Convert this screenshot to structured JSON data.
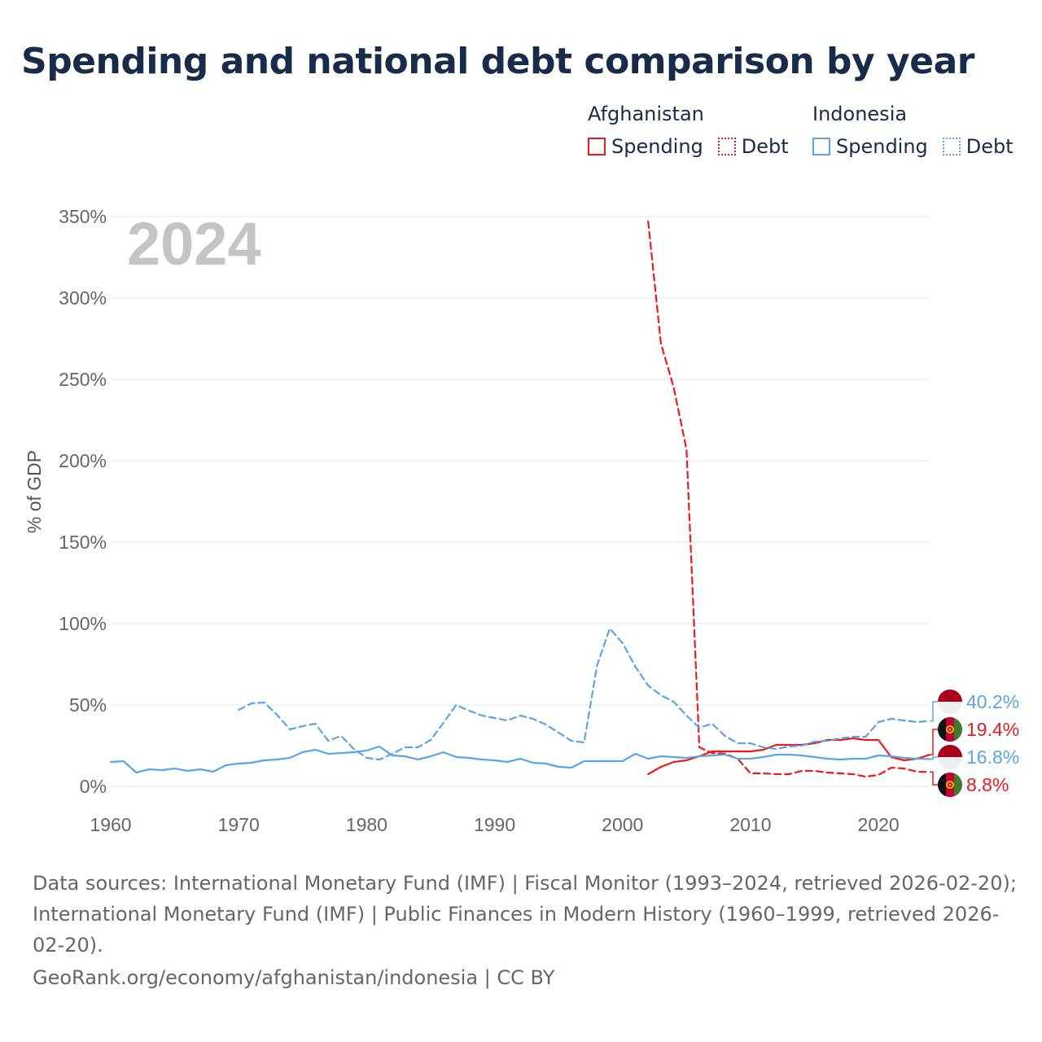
{
  "title": "Spending and national debt comparison by year",
  "legend": {
    "afghanistan": {
      "name": "Afghanistan",
      "spending": "Spending",
      "debt": "Debt",
      "color": "#e81c1c"
    },
    "indonesia": {
      "name": "Indonesia",
      "spending": "Spending",
      "debt": "Debt",
      "color": "#5ba4e5"
    }
  },
  "footer": {
    "sources": "Data sources: International Monetary Fund (IMF) | Fiscal Monitor (1993–2024, retrieved 2026-02-20); International Monetary Fund (IMF) | Public Finances in Modern History (1960–1999, retrieved 2026-02-20).",
    "site": "GeoRank.org/economy/afghanistan/indonesia | CC BY"
  },
  "chart_data": {
    "type": "line",
    "year_label": "2024",
    "ylabel": "% of GDP",
    "xlim": [
      1960,
      2024
    ],
    "ylim": [
      0,
      350
    ],
    "xticks": [
      1960,
      1970,
      1980,
      1990,
      2000,
      2010,
      2020
    ],
    "yticks": [
      0,
      50,
      100,
      150,
      200,
      250,
      300,
      350
    ],
    "ytick_labels": [
      "0%",
      "50%",
      "100%",
      "150%",
      "200%",
      "250%",
      "300%",
      "350%"
    ],
    "series": [
      {
        "name": "Afghanistan Spending",
        "country": "Afghanistan",
        "metric": "Spending",
        "color": "#e81c1c",
        "dash": "solid",
        "x": [
          2002,
          2003,
          2004,
          2005,
          2006,
          2007,
          2008,
          2009,
          2010,
          2011,
          2012,
          2013,
          2014,
          2015,
          2016,
          2017,
          2018,
          2019,
          2020,
          2021,
          2022,
          2023,
          2024
        ],
        "y": [
          7.5,
          12,
          15,
          16,
          18.5,
          21.5,
          21.5,
          21.5,
          21.5,
          22.5,
          25.5,
          25.5,
          25.5,
          26.5,
          28.5,
          28.5,
          29.5,
          28.5,
          28.5,
          18,
          16,
          17,
          19.4
        ]
      },
      {
        "name": "Afghanistan Debt",
        "country": "Afghanistan",
        "metric": "Debt",
        "color": "#e81c1c",
        "dash": "dashed",
        "x": [
          2002,
          2003,
          2004,
          2005,
          2006,
          2007,
          2008,
          2009,
          2010,
          2011,
          2012,
          2013,
          2014,
          2015,
          2016,
          2017,
          2018,
          2019,
          2020,
          2021,
          2022,
          2023,
          2024
        ],
        "y": [
          347,
          272,
          245,
          207,
          24,
          20.5,
          20,
          17,
          8,
          8,
          7.5,
          7.5,
          9.5,
          9.5,
          8.5,
          8,
          7.5,
          6,
          7,
          11.5,
          11,
          9,
          8.8
        ]
      },
      {
        "name": "Indonesia Spending",
        "country": "Indonesia",
        "metric": "Spending",
        "color": "#5ba4e5",
        "dash": "solid",
        "x": [
          1960,
          1961,
          1962,
          1963,
          1964,
          1965,
          1966,
          1967,
          1968,
          1969,
          1970,
          1971,
          1972,
          1973,
          1974,
          1975,
          1976,
          1977,
          1978,
          1979,
          1980,
          1981,
          1982,
          1983,
          1984,
          1985,
          1986,
          1987,
          1988,
          1989,
          1990,
          1991,
          1992,
          1993,
          1994,
          1995,
          1996,
          1997,
          1998,
          1999,
          2000,
          2001,
          2002,
          2003,
          2004,
          2005,
          2006,
          2007,
          2008,
          2009,
          2010,
          2011,
          2012,
          2013,
          2014,
          2015,
          2016,
          2017,
          2018,
          2019,
          2020,
          2021,
          2022,
          2023,
          2024
        ],
        "y": [
          15,
          15.5,
          8.5,
          10.5,
          10,
          11,
          9.5,
          10.5,
          9,
          13,
          14,
          14.5,
          16,
          16.5,
          17.5,
          21,
          22.5,
          20,
          20.5,
          21,
          22,
          24.5,
          19,
          18.5,
          16.5,
          18.5,
          21,
          18,
          17.5,
          16.5,
          16,
          15,
          17,
          14.5,
          14,
          12,
          11.5,
          15.5,
          15.5,
          15.5,
          15.5,
          20,
          17,
          18.5,
          18,
          17.5,
          18.5,
          19,
          19.5,
          17,
          17,
          18,
          19.5,
          19.5,
          19,
          18,
          17,
          16.5,
          17,
          17,
          19,
          18.5,
          17.5,
          17,
          16.8
        ]
      },
      {
        "name": "Indonesia Debt",
        "country": "Indonesia",
        "metric": "Debt",
        "color": "#5ba4e5",
        "dash": "dashed",
        "x": [
          1970,
          1971,
          1972,
          1973,
          1974,
          1975,
          1976,
          1977,
          1978,
          1979,
          1980,
          1981,
          1982,
          1983,
          1984,
          1985,
          1986,
          1987,
          1988,
          1989,
          1990,
          1991,
          1992,
          1993,
          1994,
          1995,
          1996,
          1997,
          1998,
          1999,
          2000,
          2001,
          2002,
          2003,
          2004,
          2005,
          2006,
          2007,
          2008,
          2009,
          2010,
          2011,
          2012,
          2013,
          2014,
          2015,
          2016,
          2017,
          2018,
          2019,
          2020,
          2021,
          2022,
          2023,
          2024
        ],
        "y": [
          47,
          51,
          51.5,
          44,
          35,
          37,
          38.5,
          28,
          31,
          23,
          17.5,
          16.5,
          20,
          24,
          24,
          28.5,
          39,
          50,
          46.5,
          43.5,
          42,
          40.5,
          43.5,
          41.5,
          38,
          33,
          28,
          27,
          74,
          97,
          88,
          73.5,
          62,
          56,
          52,
          43.5,
          36,
          38.5,
          31,
          26.5,
          26.5,
          24,
          23,
          24.5,
          25,
          27.5,
          28,
          29.5,
          30.5,
          30.5,
          39.5,
          41.5,
          40.5,
          39.5,
          40.2
        ]
      }
    ],
    "end_labels": [
      {
        "country": "Indonesia",
        "metric": "Debt",
        "value": 40.2,
        "text": "40.2%",
        "color": "#5ba4e5"
      },
      {
        "country": "Afghanistan",
        "metric": "Spending",
        "value": 19.4,
        "text": "19.4%",
        "color": "#e81c1c"
      },
      {
        "country": "Indonesia",
        "metric": "Spending",
        "value": 16.8,
        "text": "16.8%",
        "color": "#5ba4e5"
      },
      {
        "country": "Afghanistan",
        "metric": "Debt",
        "value": 8.8,
        "text": "8.8%",
        "color": "#e81c1c"
      }
    ]
  }
}
